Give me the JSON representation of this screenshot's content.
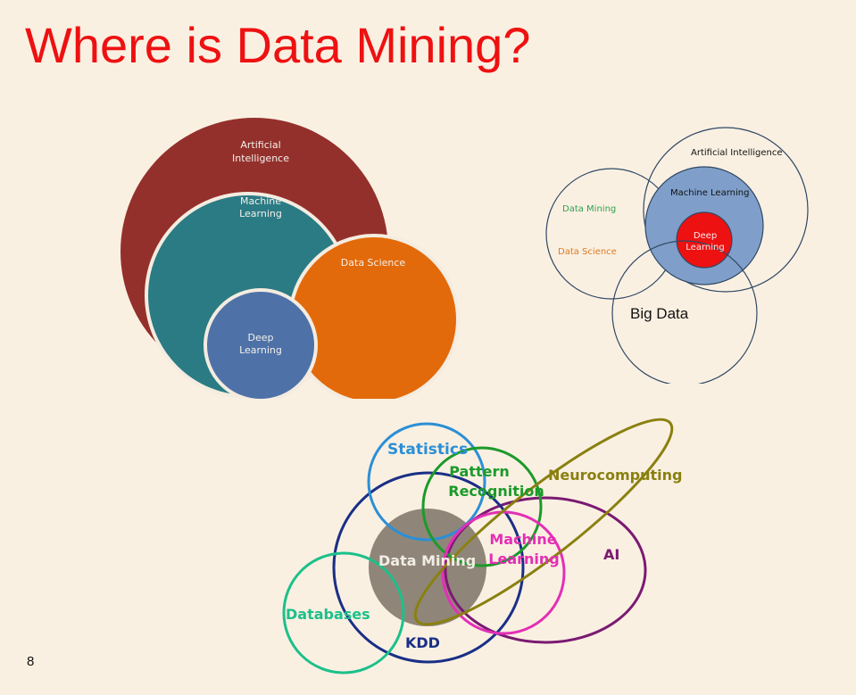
{
  "slide": {
    "title": "Where is Data Mining?",
    "page_number": "8"
  },
  "diagram1": {
    "artificial_intelligence": [
      "Artificial",
      "Intelligence"
    ],
    "machine_learning": [
      "Machine",
      "Learning"
    ],
    "data_science": "Data Science",
    "deep_learning": [
      "Deep",
      "Learning"
    ],
    "colors": {
      "artificial_intelligence": "#94302b",
      "machine_learning": "#2a7b84",
      "data_science": "#e36a0a",
      "deep_learning": "#4e72a7"
    }
  },
  "diagram2": {
    "artificial_intelligence": "Artificial Intelligence",
    "machine_learning": "Machine Learning",
    "deep_learning": [
      "Deep",
      "Learning"
    ],
    "data_mining": "Data Mining",
    "data_science": "Data Science",
    "big_data": "Big Data",
    "colors": {
      "outline": "#2f4864",
      "machine_learning_fill": "#7f9fca",
      "deep_learning_fill": "#ee1111",
      "data_mining_text": "#2fa24f",
      "data_science_text": "#e07a20"
    }
  },
  "diagram3": {
    "statistics": "Statistics",
    "pattern_recognition": [
      "Pattern",
      "Recognition"
    ],
    "neurocomputing": "Neurocomputing",
    "machine_learning": [
      "Machine",
      "Learning"
    ],
    "ai": "AI",
    "data_mining": "Data Mining",
    "databases": "Databases",
    "kdd": "KDD",
    "colors": {
      "statistics": "#2b8fd6",
      "pattern_recognition": "#1b9a2a",
      "neurocomputing": "#8a8010",
      "machine_learning": "#e42fb5",
      "ai": "#7a1a72",
      "data_mining_fill": "#8f8679",
      "databases": "#1cc08a",
      "kdd": "#1a2f86"
    }
  }
}
